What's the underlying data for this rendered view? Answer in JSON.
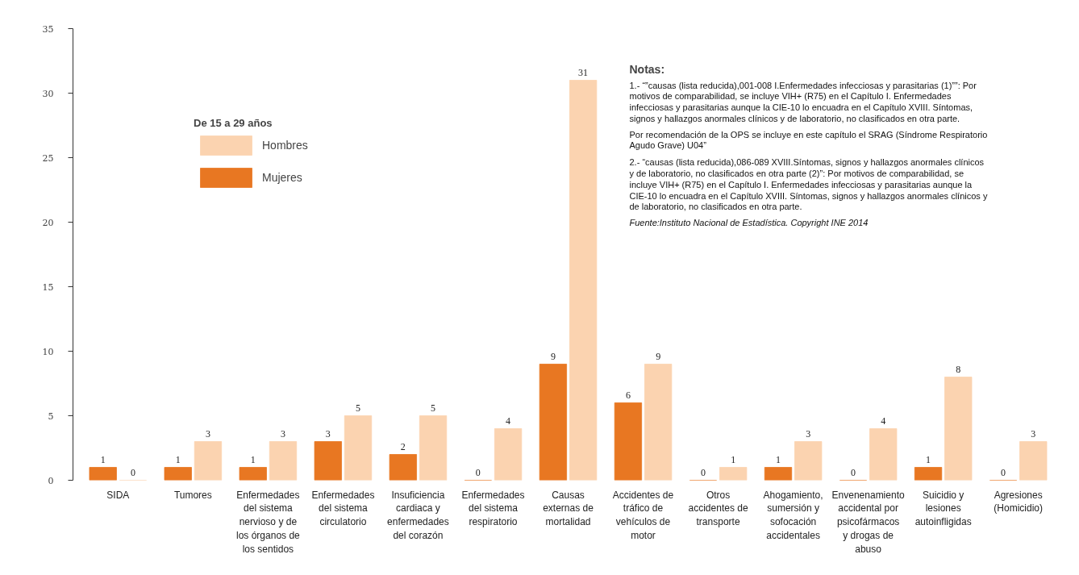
{
  "chart_data": {
    "type": "bar",
    "categories": [
      "SIDA",
      "Tumores",
      "Enfermedades del sistema nervioso y de los órganos de los sentidos",
      "Enfermedades del sistema circulatorio",
      "Insuficiencia cardiaca y enfermedades del corazón",
      "Enfermedades del sistema respiratorio",
      "Causas externas de mortalidad",
      "Accidentes de tráfico de vehículos de motor",
      "Otros accidentes de transporte",
      "Ahogamiento, sumersión y sofocación accidentales",
      "Envenenamiento accidental por psicofármacos y drogas de abuso",
      "Suicidio y lesiones autoinfligidas",
      "Agresiones (Homicidio)"
    ],
    "series": [
      {
        "name": "Mujeres",
        "color": "#e87722",
        "values": [
          1,
          1,
          1,
          3,
          2,
          0,
          9,
          6,
          0,
          1,
          0,
          1,
          0
        ]
      },
      {
        "name": "Hombres",
        "color": "#fbd3b0",
        "values": [
          0,
          3,
          3,
          5,
          5,
          4,
          31,
          9,
          1,
          3,
          4,
          8,
          3
        ]
      }
    ],
    "legend_title": "De 15 a 29 años",
    "legend": "top left",
    "ylim": [
      0,
      35
    ],
    "yticks": [
      0,
      5,
      10,
      15,
      20,
      25,
      30,
      35
    ],
    "grid": false,
    "data_labels": true,
    "annotations": [
      "Notas:",
      "1.- “”causas (lista reducida),001-008 I.Enfermedades infecciosas y parasitarias (1)””: Por motivos de comparabilidad, se incluye VIH+ (R75) en el Capítulo I. Enfermedades infecciosas y parasitarias aunque la CIE-10 lo encuadra en el Capítulo XVIII. Síntomas, signos y hallazgos anormales clínicos y de laboratorio, no clasificados en otra parte.",
      "Por recomendación de la OPS se incluye en este capítulo el SRAG (Síndrome Respiratorio Agudo Grave) U04”",
      "2.- “causas (lista reducida),086-089 XVIII.Síntomas, signos y hallazgos anormales clínicos y de laboratorio, no clasificados en otra parte (2)”: Por motivos de comparabilidad, se incluye VIH+ (R75) en el Capítulo I. Enfermedades infecciosas y parasitarias aunque la CIE-10 lo encuadra en el Capítulo XVIII. Síntomas, signos y hallazgos anormales clínicos y de laboratorio, no clasificados en otra parte.",
      "Fuente:Instituto Nacional de Estadística. Copyright INE 2014"
    ]
  }
}
